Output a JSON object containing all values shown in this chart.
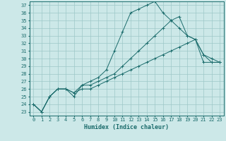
{
  "xlabel": "Humidex (Indice chaleur)",
  "bg_color": "#cce8e8",
  "grid_color": "#9dc8c8",
  "line_color": "#1a6b6b",
  "xlim": [
    -0.5,
    23.5
  ],
  "ylim": [
    22.5,
    37.5
  ],
  "xticks": [
    0,
    1,
    2,
    3,
    4,
    5,
    6,
    7,
    8,
    9,
    10,
    11,
    12,
    13,
    14,
    15,
    16,
    17,
    18,
    19,
    20,
    21,
    22,
    23
  ],
  "yticks": [
    23,
    24,
    25,
    26,
    27,
    28,
    29,
    30,
    31,
    32,
    33,
    34,
    35,
    36,
    37
  ],
  "line1_x": [
    0,
    1,
    2,
    3,
    4,
    5,
    6,
    7,
    8,
    9,
    10,
    11,
    12,
    13,
    14,
    15,
    16,
    17,
    18,
    19,
    20,
    21,
    22,
    23
  ],
  "line1_y": [
    24,
    23,
    25,
    26,
    26,
    25,
    26.5,
    27,
    27.5,
    28.5,
    31,
    33.5,
    36,
    36.5,
    37,
    37.5,
    36,
    35,
    34,
    33,
    32.5,
    30.5,
    29.5,
    29.5
  ],
  "line2_x": [
    0,
    1,
    2,
    3,
    4,
    5,
    6,
    7,
    8,
    9,
    10,
    11,
    12,
    13,
    14,
    15,
    16,
    17,
    18,
    19,
    20,
    21,
    22,
    23
  ],
  "line2_y": [
    24,
    23,
    25,
    26,
    26,
    25.5,
    26.5,
    26.5,
    27,
    27.5,
    28,
    29,
    30,
    31,
    32,
    33,
    34,
    35,
    35.5,
    33,
    32.5,
    30.5,
    30,
    29.5
  ],
  "line3_x": [
    0,
    1,
    2,
    3,
    4,
    5,
    6,
    7,
    8,
    9,
    10,
    11,
    12,
    13,
    14,
    15,
    16,
    17,
    18,
    19,
    20,
    21,
    22,
    23
  ],
  "line3_y": [
    24,
    23,
    25,
    26,
    26,
    25.5,
    26,
    26,
    26.5,
    27,
    27.5,
    28,
    28.5,
    29,
    29.5,
    30,
    30.5,
    31,
    31.5,
    32,
    32.5,
    29.5,
    29.5,
    29.5
  ]
}
